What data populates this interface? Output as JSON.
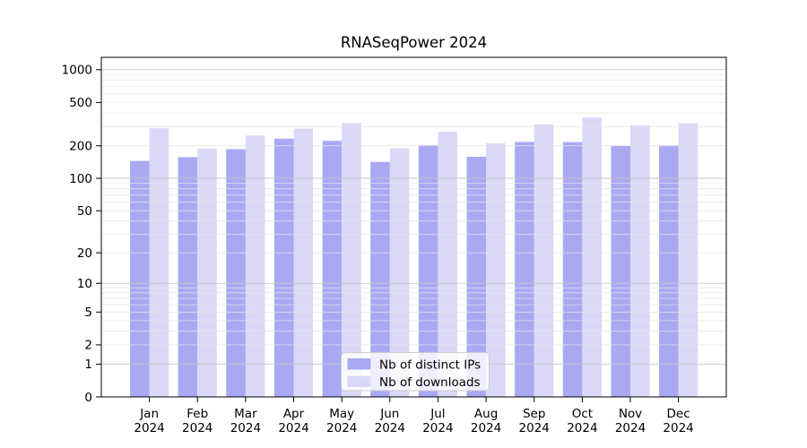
{
  "title": "RNASeqPower 2024",
  "legend": {
    "items": [
      {
        "label": "Nb of distinct IPs",
        "color": "#a9a9f2"
      },
      {
        "label": "Nb of downloads",
        "color": "#d9d9f7"
      }
    ],
    "background": "rgba(255,255,255,0.8)",
    "border_color": "#cccccc"
  },
  "chart_data": {
    "type": "bar",
    "title": "RNASeqPower 2024",
    "categories": [
      "Jan",
      "Feb",
      "Mar",
      "Apr",
      "May",
      "Jun",
      "Jul",
      "Aug",
      "Sep",
      "Oct",
      "Nov",
      "Dec"
    ],
    "year_label": "2024",
    "series": [
      {
        "name": "Nb of distinct IPs",
        "color": "#a9a9f2",
        "values": [
          145,
          157,
          186,
          232,
          222,
          142,
          203,
          158,
          217,
          216,
          199,
          201
        ]
      },
      {
        "name": "Nb of downloads",
        "color": "#d9d9f7",
        "values": [
          290,
          188,
          248,
          288,
          324,
          189,
          269,
          211,
          315,
          364,
          309,
          322
        ]
      }
    ],
    "xlabel": "",
    "ylabel": "",
    "y_ticks": [
      0,
      1,
      2,
      5,
      10,
      20,
      50,
      100,
      200,
      500,
      1000
    ],
    "y_scale": "log1p",
    "ylim": [
      0,
      1300
    ],
    "grid": "on",
    "grid_major_color": "#c6c6c6",
    "grid_minor_color": "#e4e4e4",
    "legend_position": "lower-center",
    "spine_color": "#000000"
  }
}
